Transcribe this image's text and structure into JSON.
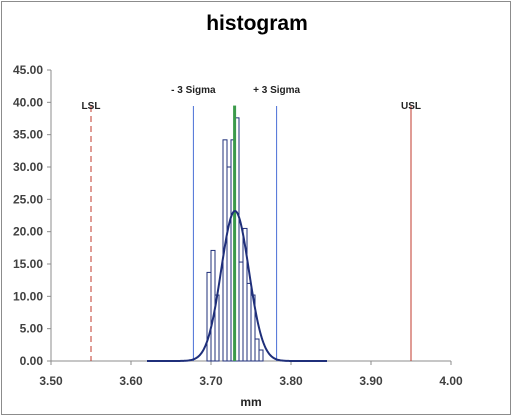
{
  "chart_data": {
    "type": "bar",
    "title": "histogram",
    "xlabel": "mm",
    "ylabel": "",
    "xlim": [
      3.5,
      4.0
    ],
    "ylim": [
      0,
      45
    ],
    "x_ticks": [
      "3.50",
      "3.60",
      "3.70",
      "3.80",
      "3.90",
      "4.00"
    ],
    "y_ticks": [
      "0.00",
      "5.00",
      "10.00",
      "15.00",
      "20.00",
      "25.00",
      "30.00",
      "35.00",
      "40.00",
      "45.00"
    ],
    "bins": [
      {
        "x": 3.6975,
        "value": 13.7
      },
      {
        "x": 3.7025,
        "value": 17.1
      },
      {
        "x": 3.7075,
        "value": 10.2
      },
      {
        "x": 3.7125,
        "value": 0
      },
      {
        "x": 3.7175,
        "value": 34.2
      },
      {
        "x": 3.7225,
        "value": 30.0
      },
      {
        "x": 3.7275,
        "value": 34.2
      },
      {
        "x": 3.7325,
        "value": 37.6
      },
      {
        "x": 3.7375,
        "value": 15.3
      },
      {
        "x": 3.7425,
        "value": 20.5
      },
      {
        "x": 3.7475,
        "value": 12.0
      },
      {
        "x": 3.7525,
        "value": 10.2
      },
      {
        "x": 3.7575,
        "value": 3.4
      },
      {
        "x": 3.7625,
        "value": 1.7
      }
    ],
    "bin_width": 0.005,
    "normal_curve": {
      "mean": 3.73,
      "peak": 23.2,
      "sigma": 0.0173,
      "x_from": 3.62,
      "x_to": 3.845,
      "color": "#1f2f7a"
    },
    "mean_marker": {
      "x": 3.7295,
      "value": 39.5,
      "color": "#3b9a4a"
    },
    "reference_lines": [
      {
        "label": "LSL",
        "x": 3.55,
        "style": "dashed",
        "color": "#c0392b"
      },
      {
        "label": "- 3 Sigma",
        "x": 3.678,
        "style": "solid",
        "color": "#4a6fd6"
      },
      {
        "label": "+ 3 Sigma",
        "x": 3.782,
        "style": "solid",
        "color": "#4a6fd6"
      },
      {
        "label": "USL",
        "x": 3.95,
        "style": "solid",
        "color": "#c0392b"
      }
    ],
    "grid": false,
    "legend": "none"
  }
}
